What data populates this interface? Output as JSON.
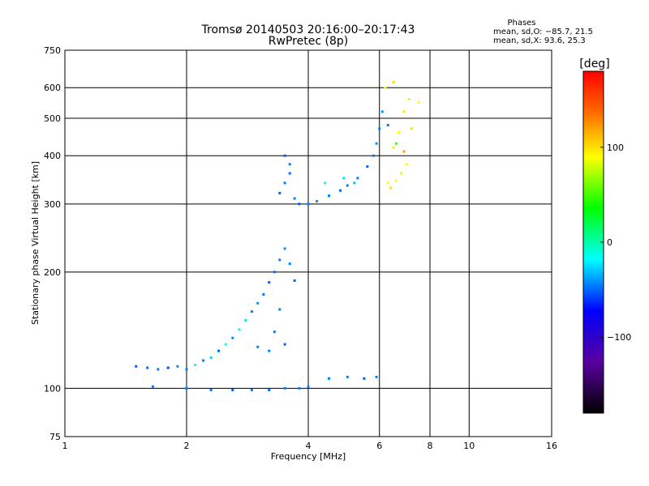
{
  "chart_data": {
    "type": "scatter",
    "title": "Tromsø 20140503 20:16:00–20:17:43",
    "subtitle": "RwPretec (8p)",
    "xlabel": "Frequency [MHz]",
    "ylabel": "Stationary phase Virtual Height [km]",
    "x_scale": "log",
    "y_scale": "log",
    "xlim": [
      1,
      16
    ],
    "ylim": [
      75,
      750
    ],
    "x_ticks": [
      1,
      2,
      4,
      6,
      8,
      10,
      16
    ],
    "x_tick_labels": [
      "1",
      "2",
      "4",
      "6",
      "8",
      "10",
      "16"
    ],
    "y_ticks": [
      75,
      100,
      200,
      300,
      400,
      500,
      600,
      750
    ],
    "y_tick_labels": [
      "75",
      "100",
      "200",
      "300",
      "400",
      "500",
      "600",
      "750"
    ],
    "grid": true,
    "stats": {
      "heading": "Phases",
      "line_o": "mean, sd,O: −85.7, 21.5",
      "line_x": "mean, sd,X:  93.6, 25.3"
    },
    "colorbar": {
      "label": "[deg]",
      "range": [
        -180,
        180
      ],
      "ticks": [
        100,
        0,
        -100
      ],
      "tick_labels": [
        "100",
        "0",
        "−100"
      ],
      "colormap": "rainbow"
    },
    "series": [
      {
        "points": [
          [
            1.5,
            114,
            -110
          ],
          [
            1.6,
            113,
            -105
          ],
          [
            1.7,
            112,
            -100
          ],
          [
            1.8,
            113,
            -120
          ],
          [
            1.9,
            114,
            -95
          ],
          [
            2.0,
            112,
            -100
          ],
          [
            2.1,
            115,
            -60
          ],
          [
            2.2,
            118,
            -100
          ],
          [
            2.3,
            120,
            -70
          ],
          [
            2.4,
            125,
            -110
          ],
          [
            2.5,
            130,
            -60
          ],
          [
            2.6,
            135,
            -100
          ],
          [
            2.7,
            142,
            -55
          ],
          [
            2.8,
            150,
            -70
          ],
          [
            2.9,
            158,
            -100
          ],
          [
            3.0,
            166,
            -90
          ],
          [
            3.1,
            175,
            -100
          ],
          [
            3.2,
            188,
            -110
          ],
          [
            3.3,
            200,
            -105
          ],
          [
            3.4,
            215,
            -100
          ],
          [
            3.5,
            230,
            -95
          ],
          [
            3.6,
            210,
            -100
          ],
          [
            3.7,
            190,
            -110
          ],
          [
            3.4,
            160,
            -100
          ],
          [
            3.3,
            140,
            -100
          ],
          [
            3.5,
            130,
            -110
          ],
          [
            3.2,
            125,
            -100
          ],
          [
            3.0,
            128,
            -95
          ]
        ]
      },
      {
        "points": [
          [
            1.65,
            101,
            -100
          ],
          [
            2.0,
            100,
            -100
          ],
          [
            2.3,
            99,
            -100
          ],
          [
            2.6,
            99,
            -110
          ],
          [
            2.9,
            99,
            -100
          ],
          [
            3.2,
            99,
            -105
          ],
          [
            3.5,
            100,
            -100
          ],
          [
            3.8,
            100,
            -100
          ],
          [
            4.0,
            101,
            -95
          ],
          [
            4.5,
            106,
            -100
          ],
          [
            5.0,
            107,
            -100
          ],
          [
            5.5,
            106,
            -110
          ],
          [
            5.9,
            107,
            -100
          ]
        ]
      },
      {
        "points": [
          [
            3.4,
            320,
            -110
          ],
          [
            3.5,
            340,
            -100
          ],
          [
            3.6,
            360,
            -105
          ],
          [
            3.7,
            310,
            -100
          ],
          [
            3.8,
            300,
            -110
          ],
          [
            4.0,
            300,
            -100
          ],
          [
            4.2,
            305,
            -95
          ],
          [
            4.5,
            315,
            -100
          ],
          [
            4.8,
            325,
            -105
          ],
          [
            5.0,
            335,
            -100
          ],
          [
            5.3,
            350,
            -100
          ],
          [
            5.6,
            375,
            -110
          ],
          [
            5.8,
            400,
            -100
          ],
          [
            5.9,
            430,
            -95
          ],
          [
            6.0,
            470,
            -100
          ],
          [
            6.1,
            520,
            -90
          ],
          [
            4.4,
            340,
            -60
          ],
          [
            4.9,
            350,
            -70
          ],
          [
            5.2,
            340,
            -80
          ],
          [
            3.6,
            380,
            -100
          ],
          [
            3.5,
            400,
            -110
          ]
        ]
      },
      {
        "points": [
          [
            6.3,
            340,
            100
          ],
          [
            6.4,
            330,
            110
          ],
          [
            6.6,
            345,
            100
          ],
          [
            6.8,
            360,
            90
          ],
          [
            7.0,
            380,
            100
          ],
          [
            6.5,
            420,
            95
          ],
          [
            6.7,
            460,
            100
          ],
          [
            6.9,
            520,
            105
          ],
          [
            7.1,
            560,
            90
          ],
          [
            6.2,
            600,
            100
          ],
          [
            6.5,
            620,
            110
          ],
          [
            6.3,
            480,
            -100
          ],
          [
            6.6,
            430,
            40
          ],
          [
            6.9,
            410,
            130
          ],
          [
            7.2,
            470,
            80
          ],
          [
            7.5,
            550,
            100
          ]
        ]
      }
    ]
  }
}
